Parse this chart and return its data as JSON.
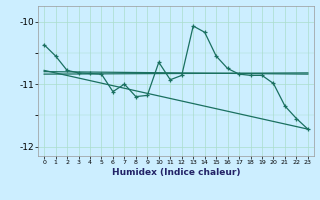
{
  "xlabel": "Humidex (Indice chaleur)",
  "x": [
    0,
    1,
    2,
    3,
    4,
    5,
    6,
    7,
    8,
    9,
    10,
    11,
    12,
    13,
    14,
    15,
    16,
    17,
    18,
    19,
    20,
    21,
    22,
    23
  ],
  "line1": [
    -10.37,
    -10.55,
    -10.78,
    -10.82,
    -10.83,
    -10.84,
    -11.12,
    -11.0,
    -11.2,
    -11.18,
    -10.65,
    -10.93,
    -10.86,
    -10.07,
    -10.17,
    -10.55,
    -10.75,
    -10.84,
    -10.86,
    -10.86,
    -10.99,
    -11.35,
    -11.55,
    -11.72
  ],
  "line2_x": [
    0,
    23
  ],
  "line2_y": [
    -10.8,
    -10.84
  ],
  "line3_x": [
    0,
    23
  ],
  "line3_y": [
    -10.84,
    -10.82
  ],
  "line4_x": [
    0,
    23
  ],
  "line4_y": [
    -10.78,
    -11.72
  ],
  "bg_color": "#cceeff",
  "grid_major_color": "#aaddcc",
  "grid_minor_color": "#bbeeee",
  "line_color": "#1a7060",
  "ylim": [
    -12.15,
    -9.75
  ],
  "xlim": [
    -0.5,
    23.5
  ],
  "yticks": [
    -12,
    -11,
    -10
  ],
  "xticks": [
    0,
    1,
    2,
    3,
    4,
    5,
    6,
    7,
    8,
    9,
    10,
    11,
    12,
    13,
    14,
    15,
    16,
    17,
    18,
    19,
    20,
    21,
    22,
    23
  ]
}
